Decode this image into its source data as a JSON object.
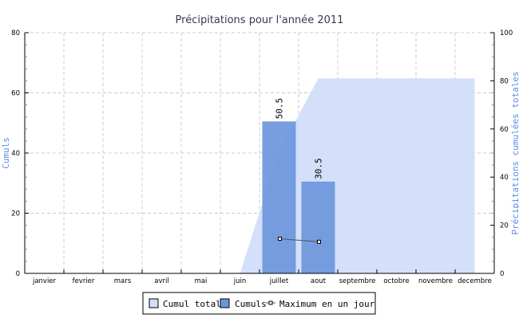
{
  "chart_data": {
    "type": "bar",
    "title": "Précipitations pour l'année 2011",
    "ylabel": "Cumuls",
    "y2label": "Précipitations cumulées totales",
    "categories": [
      "janvier",
      "fevrier",
      "mars",
      "avril",
      "mai",
      "juin",
      "juillet",
      "aout",
      "septembre",
      "octobre",
      "novembre",
      "decembre"
    ],
    "ylim": [
      0,
      80
    ],
    "y2lim": [
      0,
      100
    ],
    "yticks": [
      0,
      20,
      40,
      60,
      80
    ],
    "y2ticks": [
      0,
      20,
      40,
      60,
      80,
      100
    ],
    "grid": true,
    "legend_position": "bottom",
    "series": [
      {
        "name": "Cumul total",
        "type": "area",
        "axis": "right",
        "color": "#d2defa",
        "values": [
          null,
          null,
          null,
          null,
          null,
          0,
          50.5,
          81,
          81,
          81,
          81,
          81
        ]
      },
      {
        "name": "Cumuls",
        "type": "bar",
        "axis": "left",
        "color": "#6b96dc",
        "values": [
          0,
          0,
          0,
          0,
          0,
          0,
          50.5,
          30.5,
          0,
          0,
          0,
          0
        ],
        "data_labels": [
          null,
          null,
          null,
          null,
          null,
          null,
          "50.5",
          "30.5",
          null,
          null,
          null,
          null
        ]
      },
      {
        "name": "Maximum en un jour",
        "type": "line",
        "axis": "left",
        "color": "#555555",
        "values": [
          null,
          null,
          null,
          null,
          null,
          null,
          11.5,
          10.5,
          null,
          null,
          null,
          null
        ]
      }
    ]
  }
}
